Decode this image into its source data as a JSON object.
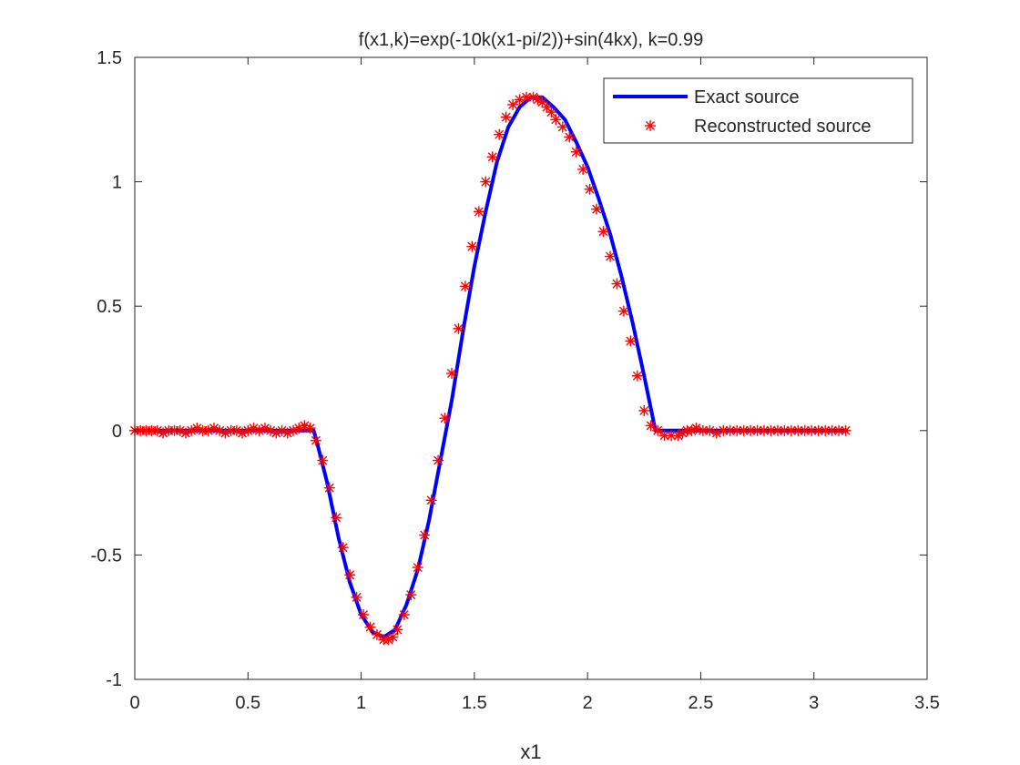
{
  "chart_data": {
    "type": "line",
    "title": "f(x1,k)=exp(-10k(x1-pi/2))+sin(4kx),    k=0.99",
    "xlabel": "x1",
    "ylabel": "",
    "xlim": [
      0,
      3.5
    ],
    "ylim": [
      -1,
      1.5
    ],
    "xticks": [
      0,
      0.5,
      1,
      1.5,
      2,
      2.5,
      3,
      3.5
    ],
    "xtick_labels": [
      "0",
      "0.5",
      "1",
      "1.5",
      "2",
      "2.5",
      "3",
      "3.5"
    ],
    "yticks": [
      -1,
      -0.5,
      0,
      0.5,
      1,
      1.5
    ],
    "ytick_labels": [
      "-1",
      "-0.5",
      "0",
      "0.5",
      "1",
      "1.5"
    ],
    "grid": false,
    "legend_position": "top-right",
    "series": [
      {
        "name": "Exact source",
        "style": "line",
        "color": "#0000ff",
        "x": [
          0,
          0.79,
          0.8,
          0.85,
          0.9,
          0.95,
          1.0,
          1.05,
          1.1,
          1.15,
          1.2,
          1.25,
          1.3,
          1.35,
          1.4,
          1.45,
          1.5,
          1.55,
          1.6,
          1.65,
          1.7,
          1.75,
          1.8,
          1.85,
          1.9,
          1.95,
          2.0,
          2.05,
          2.1,
          2.15,
          2.2,
          2.25,
          2.3,
          2.35,
          2.37,
          3.15
        ],
        "y": [
          0,
          0,
          -0.03,
          -0.21,
          -0.43,
          -0.61,
          -0.74,
          -0.81,
          -0.83,
          -0.8,
          -0.7,
          -0.56,
          -0.36,
          -0.12,
          0.12,
          0.4,
          0.66,
          0.88,
          1.08,
          1.22,
          1.3,
          1.34,
          1.34,
          1.3,
          1.25,
          1.16,
          1.06,
          0.93,
          0.79,
          0.62,
          0.43,
          0.22,
          0.0,
          0.0,
          0.0,
          0
        ],
        "values": [
          0,
          0,
          -0.03,
          -0.21,
          -0.43,
          -0.61,
          -0.74,
          -0.81,
          -0.83,
          -0.8,
          -0.7,
          -0.56,
          -0.36,
          -0.12,
          0.12,
          0.4,
          0.66,
          0.88,
          1.08,
          1.22,
          1.3,
          1.34,
          1.34,
          1.3,
          1.25,
          1.16,
          1.06,
          0.93,
          0.79,
          0.62,
          0.43,
          0.22,
          0.0,
          0.0,
          0.0,
          0
        ]
      },
      {
        "name": "Reconstructed source",
        "style": "marker",
        "marker": "*",
        "color": "#ff0000",
        "x": [
          0.0,
          0.025,
          0.05,
          0.075,
          0.1,
          0.125,
          0.15,
          0.175,
          0.2,
          0.225,
          0.25,
          0.275,
          0.3,
          0.325,
          0.35,
          0.375,
          0.4,
          0.425,
          0.45,
          0.475,
          0.5,
          0.525,
          0.55,
          0.575,
          0.6,
          0.625,
          0.65,
          0.675,
          0.7,
          0.725,
          0.75,
          0.775,
          0.8,
          0.83,
          0.86,
          0.89,
          0.92,
          0.95,
          0.98,
          1.01,
          1.04,
          1.07,
          1.1,
          1.12,
          1.14,
          1.16,
          1.19,
          1.22,
          1.25,
          1.28,
          1.31,
          1.34,
          1.37,
          1.4,
          1.43,
          1.46,
          1.49,
          1.52,
          1.55,
          1.58,
          1.61,
          1.64,
          1.67,
          1.7,
          1.73,
          1.76,
          1.78,
          1.8,
          1.82,
          1.84,
          1.86,
          1.89,
          1.92,
          1.95,
          1.98,
          2.01,
          2.04,
          2.07,
          2.1,
          2.13,
          2.16,
          2.19,
          2.22,
          2.25,
          2.28,
          2.31,
          2.34,
          2.37,
          2.4,
          2.42,
          2.44,
          2.46,
          2.48,
          2.51,
          2.54,
          2.57,
          2.6,
          2.63,
          2.66,
          2.69,
          2.72,
          2.75,
          2.78,
          2.81,
          2.84,
          2.87,
          2.9,
          2.93,
          2.96,
          2.99,
          3.02,
          3.05,
          3.08,
          3.11,
          3.14
        ],
        "y": [
          0.0,
          0.0,
          0.0,
          0.0,
          0.0,
          -0.01,
          0.0,
          0.0,
          0.0,
          -0.01,
          0.0,
          0.01,
          0.0,
          0.0,
          0.01,
          0.0,
          -0.01,
          0.0,
          0.0,
          -0.01,
          0.0,
          0.01,
          0.0,
          0.01,
          0.0,
          -0.01,
          0.0,
          -0.01,
          0.0,
          0.01,
          0.02,
          0.01,
          -0.04,
          -0.12,
          -0.23,
          -0.35,
          -0.47,
          -0.58,
          -0.67,
          -0.74,
          -0.79,
          -0.82,
          -0.84,
          -0.84,
          -0.83,
          -0.8,
          -0.74,
          -0.66,
          -0.55,
          -0.42,
          -0.28,
          -0.12,
          0.05,
          0.23,
          0.41,
          0.58,
          0.74,
          0.88,
          1.0,
          1.1,
          1.19,
          1.26,
          1.31,
          1.33,
          1.34,
          1.34,
          1.33,
          1.32,
          1.3,
          1.28,
          1.25,
          1.22,
          1.18,
          1.12,
          1.05,
          0.97,
          0.89,
          0.8,
          0.7,
          0.59,
          0.48,
          0.36,
          0.22,
          0.08,
          0.02,
          0.0,
          -0.02,
          -0.02,
          -0.02,
          -0.01,
          0.0,
          0.0,
          0.01,
          0.0,
          0.0,
          -0.01,
          0.0,
          0.0,
          0.0,
          0.0,
          0.0,
          0.0,
          0.0,
          0.0,
          0.0,
          0.0,
          0.0,
          0.0,
          0.0,
          0.0,
          0.0,
          0.0,
          0.0,
          0.0,
          0.0
        ],
        "values": [
          0.0,
          0.0,
          0.0,
          0.0,
          0.0,
          -0.01,
          0.0,
          0.0,
          0.0,
          -0.01,
          0.0,
          0.01,
          0.0,
          0.0,
          0.01,
          0.0,
          -0.01,
          0.0,
          0.0,
          -0.01,
          0.0,
          0.01,
          0.0,
          0.01,
          0.0,
          -0.01,
          0.0,
          -0.01,
          0.0,
          0.01,
          0.02,
          0.01,
          -0.04,
          -0.12,
          -0.23,
          -0.35,
          -0.47,
          -0.58,
          -0.67,
          -0.74,
          -0.79,
          -0.82,
          -0.84,
          -0.84,
          -0.83,
          -0.8,
          -0.74,
          -0.66,
          -0.55,
          -0.42,
          -0.28,
          -0.12,
          0.05,
          0.23,
          0.41,
          0.58,
          0.74,
          0.88,
          1.0,
          1.1,
          1.19,
          1.26,
          1.31,
          1.33,
          1.34,
          1.34,
          1.33,
          1.32,
          1.3,
          1.28,
          1.25,
          1.22,
          1.18,
          1.12,
          1.05,
          0.97,
          0.89,
          0.8,
          0.7,
          0.59,
          0.48,
          0.36,
          0.22,
          0.08,
          0.02,
          0.0,
          -0.02,
          -0.02,
          -0.02,
          -0.01,
          0.0,
          0.0,
          0.01,
          0.0,
          0.0,
          -0.01,
          0.0,
          0.0,
          0.0,
          0.0,
          0.0,
          0.0,
          0.0,
          0.0,
          0.0,
          0.0,
          0.0,
          0.0,
          0.0,
          0.0,
          0.0,
          0.0,
          0.0,
          0.0,
          0.0
        ]
      }
    ]
  }
}
